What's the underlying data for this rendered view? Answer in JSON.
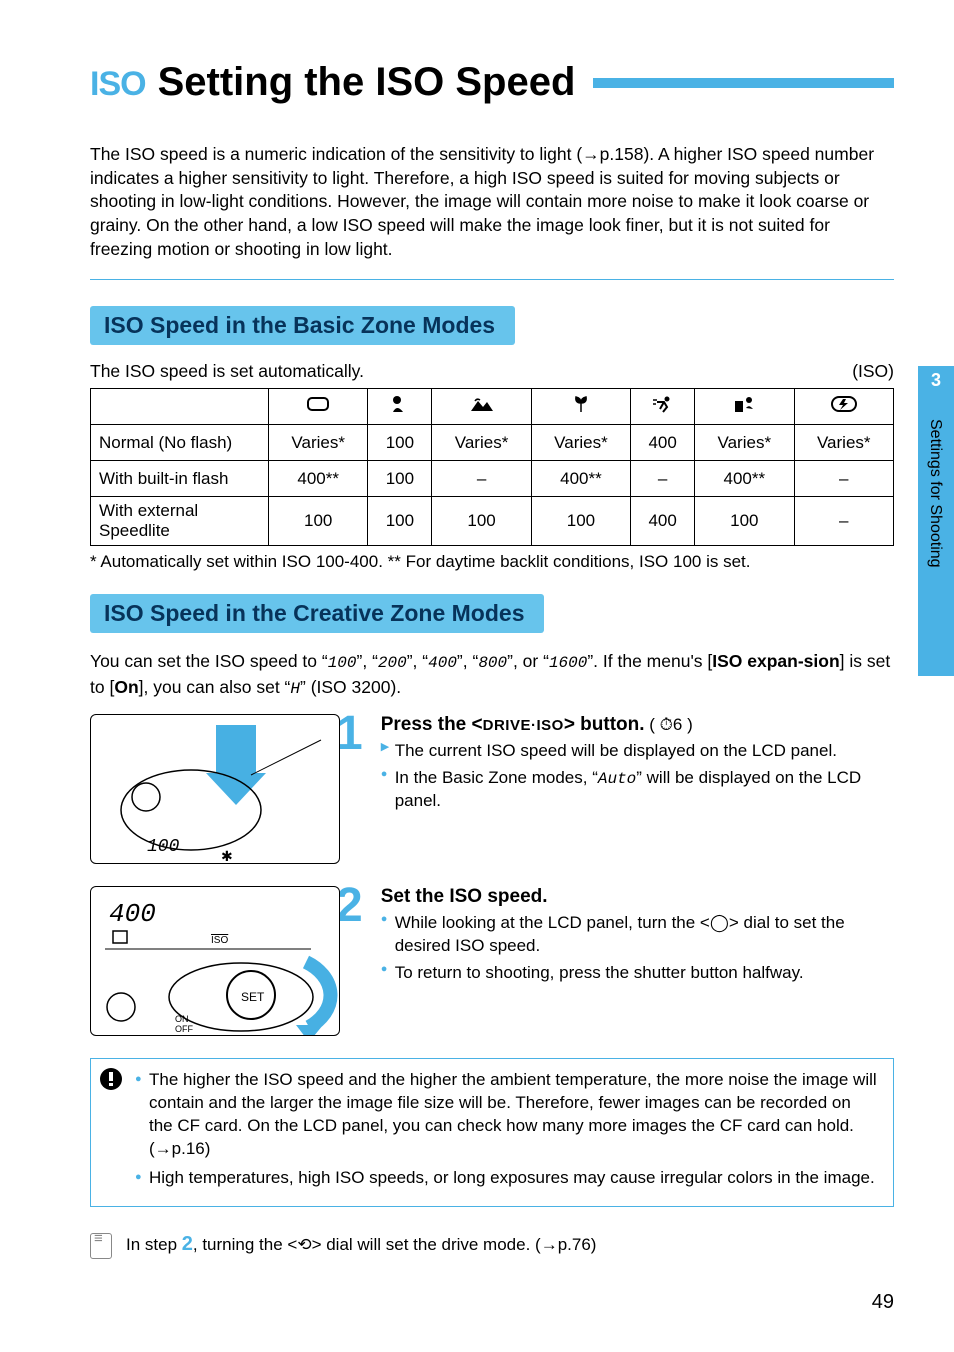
{
  "colors": {
    "accent": "#4ab2e5",
    "accent_text": "#0b4a7a",
    "section_bg": "#67c4ec",
    "section_text": "#07335a",
    "hr": "#4ab2e5",
    "iso_pre": "#4ab2e5",
    "bullet_tri": "#4ab2e5",
    "bullet_dot": "#4ab2e5",
    "note_border": "#4ab2e5",
    "note_bullet": "#4ab2e5",
    "sidebar_bg": "#4ab2e5",
    "step_num": "#4ab2e5",
    "tip_bignum": "#4ab2e5"
  },
  "title": {
    "iso_prefix": "ISO",
    "text": "Setting the ISO Speed"
  },
  "intro": "The ISO speed is a numeric indication of the sensitivity to light (→p.158). A higher ISO speed number indicates a higher sensitivity to light. Therefore, a high ISO speed is suited for moving subjects or shooting in low-light conditions. However, the image will contain more noise to make it look coarse or grainy. On the other hand, a low ISO speed will make the image look finer, but it is not suited for freezing motion or shooting in low light.",
  "section_basic": "ISO Speed in the Basic Zone Modes",
  "auto_row": {
    "left": "The ISO speed is set automatically.",
    "right": "(ISO)"
  },
  "table": {
    "head_icons": [
      "rect",
      "portrait",
      "landscape",
      "macro",
      "sports",
      "night",
      "flashoff"
    ],
    "rows": [
      {
        "label": "Normal (No flash)",
        "cells": [
          "Varies*",
          "100",
          "Varies*",
          "Varies*",
          "400",
          "Varies*",
          "Varies*"
        ]
      },
      {
        "label": "With built-in flash",
        "cells": [
          "400**",
          "100",
          "–",
          "400**",
          "–",
          "400**",
          "–"
        ]
      },
      {
        "label": "With external Speedlite",
        "cells": [
          "100",
          "100",
          "100",
          "100",
          "400",
          "100",
          "–"
        ]
      }
    ]
  },
  "footnote": "* Automatically set within ISO 100-400. ** For daytime backlit conditions, ISO 100 is set.",
  "section_creative": "ISO Speed in the Creative Zone Modes",
  "creative_para_parts": {
    "p1": "You can set the ISO speed to “",
    "v1": "100",
    "p2": "”, “",
    "v2": "200",
    "p3": "”, “",
    "v3": "400",
    "p4": "”, “",
    "v4": "800",
    "p5": "”, or “",
    "v5": "1600",
    "p6": "”. If the menu's [",
    "b1": "ISO expan-sion",
    "p7": "] is set to [",
    "b2": "On",
    "p8": "], you can also set “",
    "v6": "H",
    "p9": "” (ISO 3200)."
  },
  "step1": {
    "num": "1",
    "title_a": "Press the <",
    "title_mid": "DRIVE·ISO",
    "title_b": "> button.",
    "title_suffix": " ( ⏱6 )",
    "items": [
      {
        "type": "tri",
        "text": "The current ISO speed will be displayed on the LCD panel."
      },
      {
        "type": "dot",
        "text_a": "In the Basic Zone modes, “",
        "lcd": "Auto",
        "text_b": "” will be displayed on the LCD panel."
      }
    ]
  },
  "step2": {
    "num": "2",
    "title": "Set the ISO speed.",
    "items": [
      {
        "type": "dot",
        "text": "While looking at the LCD panel, turn the <◯> dial to set the desired ISO speed."
      },
      {
        "type": "dot",
        "text": "To return to shooting, press the shutter button halfway."
      }
    ]
  },
  "notes": [
    "The higher the ISO speed and the higher the ambient temperature, the more noise the image will contain and the larger the image file size will be. Therefore, fewer images can be recorded on the CF card. On the LCD panel, you can check how many more images the CF card can hold. (→p.16)",
    "High temperatures, high ISO speeds, or long exposures may cause irregular colors in the image."
  ],
  "tip": {
    "pre": "In step ",
    "num": "2",
    "post": ", turning the <⟲> dial will set the drive mode. (→p.76)"
  },
  "sidebar": {
    "chapter": "3",
    "label": "Settings for Shooting"
  },
  "page_number": "49"
}
